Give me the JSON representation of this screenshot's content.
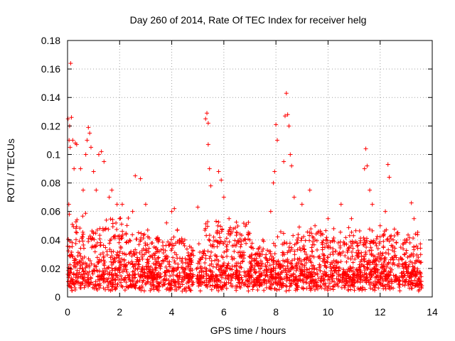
{
  "chart_data": {
    "type": "scatter",
    "title": "Day 260 of 2014, Rate Of TEC Index for receiver helg",
    "xlabel": "GPS time / hours",
    "ylabel": "ROTI / TECUs",
    "xlim": [
      0,
      14
    ],
    "ylim": [
      0,
      0.18
    ],
    "x_ticks": [
      0,
      2,
      4,
      6,
      8,
      10,
      12,
      14
    ],
    "x_tick_labels": [
      "0",
      "2",
      "4",
      "6",
      "8",
      "10",
      "12",
      "14"
    ],
    "y_ticks": [
      0,
      0.02,
      0.04,
      0.06,
      0.08,
      0.1,
      0.12,
      0.14,
      0.16,
      0.18
    ],
    "y_tick_labels": [
      "0",
      "0.02",
      "0.04",
      "0.06",
      "0.08",
      "0.1",
      "0.12",
      "0.14",
      "0.16",
      "0.18"
    ],
    "grid": true,
    "marker": "+",
    "color": "#ff0000",
    "data_gaps_hours": [
      [
        4.85,
        4.95
      ],
      [
        13.6,
        14.0
      ]
    ],
    "series": [
      {
        "name": "ROTI",
        "points": [
          [
            0.02,
            0.125
          ],
          [
            0.05,
            0.065
          ],
          [
            0.06,
            0.11
          ],
          [
            0.08,
            0.12
          ],
          [
            0.1,
            0.105
          ],
          [
            0.12,
            0.164
          ],
          [
            0.15,
            0.126
          ],
          [
            0.2,
            0.11
          ],
          [
            0.25,
            0.09
          ],
          [
            0.3,
            0.108
          ],
          [
            0.35,
            0.107
          ],
          [
            0.5,
            0.09
          ],
          [
            0.6,
            0.075
          ],
          [
            0.7,
            0.1
          ],
          [
            0.75,
            0.11
          ],
          [
            0.8,
            0.119
          ],
          [
            0.85,
            0.115
          ],
          [
            0.9,
            0.105
          ],
          [
            1.0,
            0.088
          ],
          [
            1.1,
            0.075
          ],
          [
            1.2,
            0.1
          ],
          [
            1.3,
            0.102
          ],
          [
            1.4,
            0.095
          ],
          [
            1.6,
            0.07
          ],
          [
            1.7,
            0.075
          ],
          [
            1.9,
            0.065
          ],
          [
            2.0,
            0.055
          ],
          [
            2.1,
            0.065
          ],
          [
            2.5,
            0.06
          ],
          [
            2.6,
            0.085
          ],
          [
            2.8,
            0.083
          ],
          [
            3.0,
            0.065
          ],
          [
            3.5,
            0.04
          ],
          [
            3.8,
            0.052
          ],
          [
            4.0,
            0.06
          ],
          [
            4.1,
            0.062
          ],
          [
            4.3,
            0.04
          ],
          [
            4.5,
            0.04
          ],
          [
            5.0,
            0.063
          ],
          [
            5.3,
            0.125
          ],
          [
            5.35,
            0.129
          ],
          [
            5.4,
            0.122
          ],
          [
            5.4,
            0.107
          ],
          [
            5.45,
            0.09
          ],
          [
            5.5,
            0.078
          ],
          [
            5.8,
            0.088
          ],
          [
            5.9,
            0.082
          ],
          [
            6.0,
            0.07
          ],
          [
            6.2,
            0.055
          ],
          [
            6.5,
            0.045
          ],
          [
            7.0,
            0.04
          ],
          [
            7.5,
            0.04
          ],
          [
            7.8,
            0.06
          ],
          [
            7.9,
            0.08
          ],
          [
            7.95,
            0.088
          ],
          [
            8.0,
            0.121
          ],
          [
            8.05,
            0.11
          ],
          [
            8.3,
            0.095
          ],
          [
            8.35,
            0.127
          ],
          [
            8.4,
            0.143
          ],
          [
            8.45,
            0.128
          ],
          [
            8.5,
            0.12
          ],
          [
            8.55,
            0.1
          ],
          [
            8.6,
            0.092
          ],
          [
            8.7,
            0.07
          ],
          [
            9.0,
            0.065
          ],
          [
            9.3,
            0.075
          ],
          [
            9.5,
            0.05
          ],
          [
            10.0,
            0.055
          ],
          [
            10.5,
            0.065
          ],
          [
            10.9,
            0.055
          ],
          [
            11.4,
            0.09
          ],
          [
            11.45,
            0.104
          ],
          [
            11.5,
            0.092
          ],
          [
            11.6,
            0.075
          ],
          [
            11.7,
            0.065
          ],
          [
            12.0,
            0.05
          ],
          [
            12.2,
            0.06
          ],
          [
            12.3,
            0.093
          ],
          [
            12.35,
            0.084
          ],
          [
            12.5,
            0.04
          ],
          [
            13.0,
            0.04
          ],
          [
            13.2,
            0.066
          ],
          [
            13.3,
            0.055
          ],
          [
            13.5,
            0.01
          ],
          [
            13.6,
            0.008
          ]
        ]
      }
    ]
  }
}
